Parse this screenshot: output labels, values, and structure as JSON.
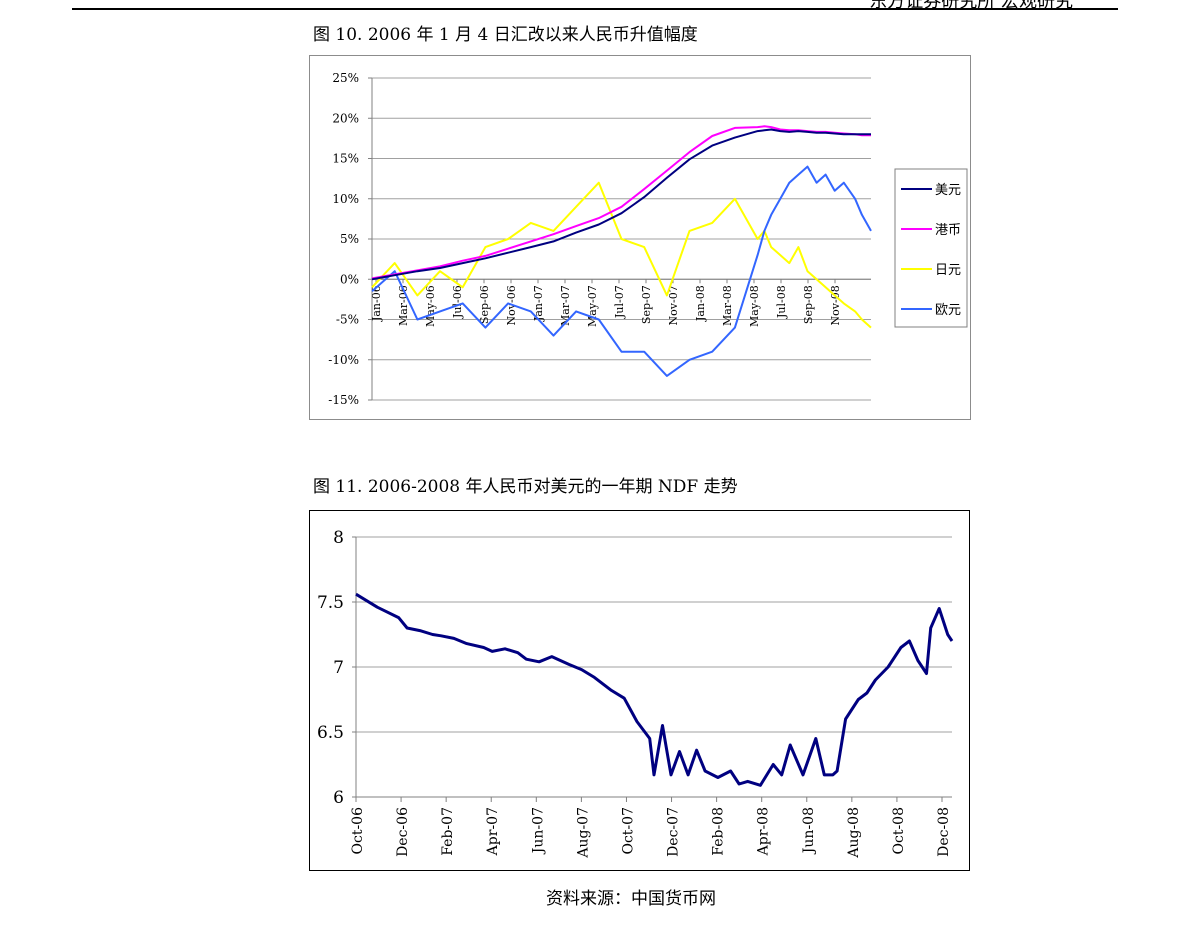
{
  "header": {
    "text": "东方证券研究所 宏观研究"
  },
  "figure10": {
    "caption": "图 10. 2006 年 1 月 4 日汇改以来人民币升值幅度",
    "chart_data": {
      "type": "line",
      "title": "",
      "xlabel": "",
      "ylabel": "",
      "ylim": [
        -15,
        25
      ],
      "y_ticks": [
        "25%",
        "20%",
        "15%",
        "10%",
        "5%",
        "0%",
        "-5%",
        "-10%",
        "-15%"
      ],
      "x_ticks": [
        "Jan-06",
        "Mar-06",
        "May-06",
        "Jul-06",
        "Sep-06",
        "Nov-06",
        "Jan-07",
        "Mar-07",
        "May-07",
        "Jul-07",
        "Sep-07",
        "Nov-07",
        "Jan-08",
        "Mar-08",
        "May-08",
        "Jul-08",
        "Sep-08",
        "Nov-08"
      ],
      "x": [
        0,
        1,
        2,
        3,
        4,
        5,
        6,
        7,
        8,
        9,
        10,
        11,
        12,
        13,
        14,
        15,
        16,
        17,
        17.3,
        17.6,
        18,
        18.4,
        18.8,
        19.2,
        19.6,
        20,
        20.4,
        20.8,
        21.3,
        21.6,
        22
      ],
      "grid": "horizontal",
      "legend": "right",
      "series": [
        {
          "name": "美元",
          "color": "#000080",
          "values": [
            0,
            0.5,
            1,
            1.4,
            2,
            2.6,
            3.3,
            4,
            4.7,
            5.8,
            6.8,
            8.2,
            10.2,
            12.6,
            14.9,
            16.6,
            17.6,
            18.4,
            18.5,
            18.6,
            18.4,
            18.3,
            18.4,
            18.3,
            18.2,
            18.2,
            18.1,
            18.0,
            18.0,
            18.0,
            18.0
          ]
        },
        {
          "name": "港币",
          "color": "#ff00ff",
          "values": [
            0.1,
            0.6,
            1.1,
            1.6,
            2.3,
            2.9,
            3.8,
            4.7,
            5.6,
            6.6,
            7.6,
            9.0,
            11.2,
            13.5,
            15.8,
            17.8,
            18.8,
            18.9,
            19.0,
            18.9,
            18.6,
            18.5,
            18.5,
            18.4,
            18.3,
            18.3,
            18.2,
            18.1,
            18.0,
            17.9,
            17.9
          ]
        },
        {
          "name": "日元",
          "color": "#ffff00",
          "values": [
            -1,
            2,
            -2,
            1,
            -1,
            4,
            5,
            7,
            6,
            9,
            12,
            5,
            4,
            -2,
            6,
            7,
            10,
            5,
            6,
            4,
            3,
            2,
            4,
            1,
            0,
            -1,
            -2,
            -3,
            -4,
            -5,
            -6
          ]
        },
        {
          "name": "欧元",
          "color": "#3366ff",
          "values": [
            -1.5,
            1,
            -5,
            -4,
            -3,
            -6,
            -3,
            -4,
            -7,
            -4,
            -5,
            -9,
            -9,
            -12,
            -10,
            -9,
            -6,
            3,
            6,
            8,
            10,
            12,
            13,
            14,
            12,
            13,
            11,
            12,
            10,
            8,
            6
          ]
        }
      ]
    }
  },
  "figure11": {
    "caption": "图 11. 2006-2008 年人民币对美元的一年期 NDF 走势",
    "chart_data": {
      "type": "line",
      "title": "",
      "xlabel": "",
      "ylabel": "",
      "ylim": [
        6,
        8
      ],
      "y_ticks": [
        "8",
        "7.5",
        "7",
        "6.5",
        "6"
      ],
      "x_ticks": [
        "Oct-06",
        "Dec-06",
        "Feb-07",
        "Apr-07",
        "Jun-07",
        "Aug-07",
        "Oct-07",
        "Dec-07",
        "Feb-08",
        "Apr-08",
        "Jun-08",
        "Aug-08",
        "Oct-08",
        "Dec-08"
      ],
      "grid": "horizontal",
      "legend": "none",
      "series": [
        {
          "name": "",
          "color": "#000080",
          "x": [
            0,
            0.5,
            1,
            1.2,
            1.5,
            1.8,
            2,
            2.3,
            2.6,
            3,
            3.2,
            3.5,
            3.8,
            4,
            4.3,
            4.6,
            5,
            5.3,
            5.6,
            6,
            6.3,
            6.6,
            6.9,
            7.0,
            7.2,
            7.4,
            7.6,
            7.8,
            8.0,
            8.2,
            8.5,
            8.8,
            9.0,
            9.2,
            9.5,
            9.8,
            10.0,
            10.2,
            10.5,
            10.8,
            11.0,
            11.2,
            11.3,
            11.5,
            11.8,
            12.0,
            12.2,
            12.5,
            12.8,
            13.0,
            13.2,
            13.4,
            13.5,
            13.7,
            13.9,
            14.0
          ],
          "values": [
            7.56,
            7.46,
            7.38,
            7.3,
            7.28,
            7.25,
            7.24,
            7.22,
            7.18,
            7.15,
            7.12,
            7.14,
            7.11,
            7.06,
            7.04,
            7.08,
            7.02,
            6.98,
            6.92,
            6.82,
            6.76,
            6.58,
            6.45,
            6.17,
            6.55,
            6.17,
            6.35,
            6.17,
            6.36,
            6.2,
            6.15,
            6.2,
            6.1,
            6.12,
            6.09,
            6.25,
            6.17,
            6.4,
            6.17,
            6.45,
            6.17,
            6.17,
            6.2,
            6.6,
            6.75,
            6.8,
            6.9,
            7.0,
            7.15,
            7.2,
            7.05,
            6.95,
            7.3,
            7.45,
            7.25,
            7.2
          ]
        }
      ]
    }
  },
  "source": {
    "text": "资料来源：中国货币网"
  }
}
